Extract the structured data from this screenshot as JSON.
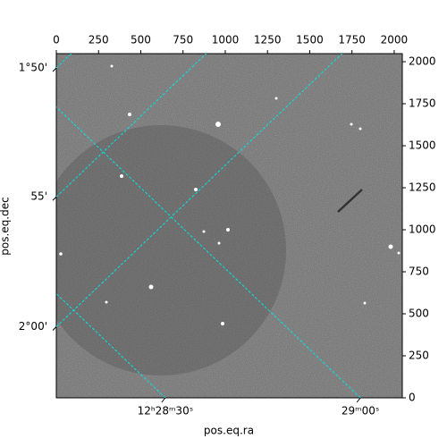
{
  "chart_data": {
    "type": "image",
    "xlabel": "pos.eq.ra",
    "ylabel": "pos.eq.dec",
    "xlim": [
      0,
      2048
    ],
    "ylim": [
      0,
      2048
    ],
    "xticks": [
      0,
      250,
      500,
      750,
      1000,
      1250,
      1500,
      1750,
      2000
    ],
    "yticks": [
      0,
      250,
      500,
      750,
      1000,
      1250,
      1500,
      1750,
      2000
    ],
    "ra_ticks": [
      {
        "value": 645,
        "label": "12ʰ28ᵐ30ˢ"
      },
      {
        "value": 1800,
        "label": "29ᵐ00ˢ"
      }
    ],
    "dec_ticks": [
      {
        "value": 1963,
        "label": "1°50'"
      },
      {
        "value": 1196,
        "label": "55'"
      },
      {
        "value": 423,
        "label": "2°00'"
      }
    ],
    "grid_color": "#00e5e5"
  }
}
